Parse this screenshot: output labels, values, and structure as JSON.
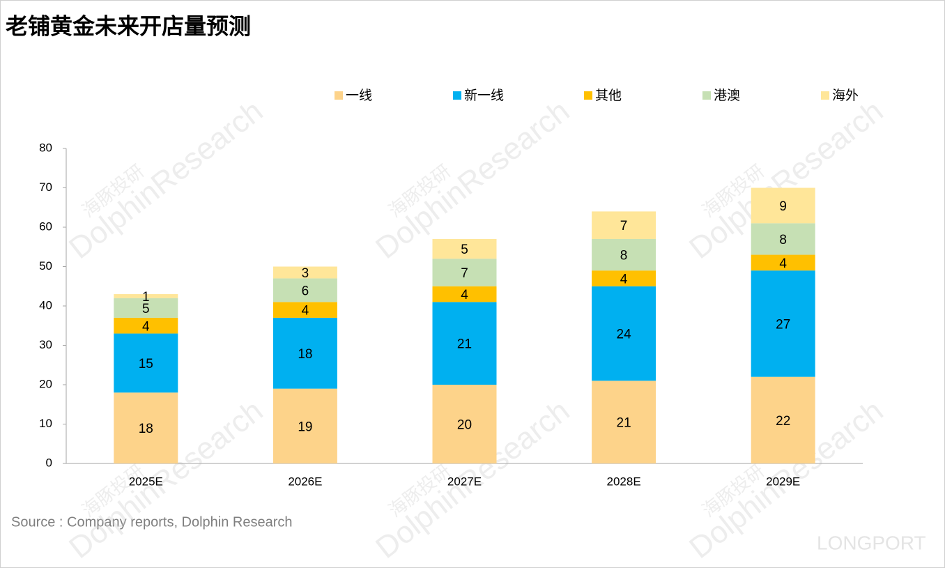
{
  "chart_data": {
    "type": "stacked-bar",
    "title": "老铺黄金未来开店量预测",
    "categories": [
      "2025E",
      "2026E",
      "2027E",
      "2028E",
      "2029E"
    ],
    "series": [
      {
        "name": "一线",
        "color": "#FDD38A",
        "values": [
          18,
          19,
          20,
          21,
          22
        ]
      },
      {
        "name": "新一线",
        "color": "#00B0F0",
        "values": [
          15,
          18,
          21,
          24,
          27
        ]
      },
      {
        "name": "其他",
        "color": "#FFC000",
        "values": [
          4,
          4,
          4,
          4,
          4
        ]
      },
      {
        "name": "港澳",
        "color": "#C6E0B4",
        "values": [
          5,
          6,
          7,
          8,
          8
        ]
      },
      {
        "name": "海外",
        "color": "#FFE699",
        "values": [
          1,
          3,
          5,
          7,
          9
        ]
      }
    ],
    "ylim": [
      0,
      80
    ],
    "yticks": [
      0,
      10,
      20,
      30,
      40,
      50,
      60,
      70,
      80
    ],
    "legend": "top",
    "source": "Source : Company reports, Dolphin Research",
    "watermark": [
      "海豚投研",
      "DolphinResearch"
    ],
    "brand": "LONGPORT"
  }
}
